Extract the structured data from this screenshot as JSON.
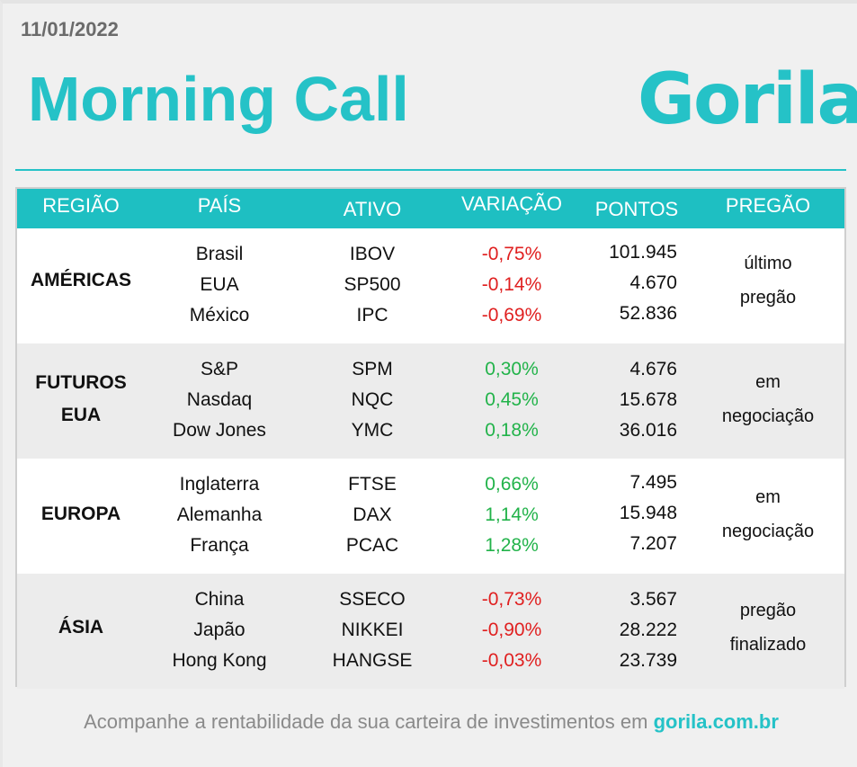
{
  "date": "11/01/2022",
  "title": "Morning Call",
  "logo_text": "Gorila",
  "colors": {
    "accent": "#25c2c7",
    "header_bg": "#1ebfc2",
    "negative": "#e02020",
    "positive": "#22b34a"
  },
  "headers": {
    "regiao": "REGIÃO",
    "pais": "PAÍS",
    "ativo": "ATIVO",
    "variacao": "VARIAÇÃO",
    "pontos": "PONTOS",
    "pregao": "PREGÃO"
  },
  "rows": [
    {
      "region_line1": "AMÉRICAS",
      "region_line2": "",
      "countries": [
        "Brasil",
        "EUA",
        "México"
      ],
      "assets": [
        "IBOV",
        "SP500",
        "IPC"
      ],
      "variations": [
        "-0,75%",
        "-0,14%",
        "-0,69%"
      ],
      "points": [
        "101.945",
        "4.670",
        "52.836"
      ],
      "status_line1": "último",
      "status_line2": "pregão"
    },
    {
      "region_line1": "FUTUROS",
      "region_line2": "EUA",
      "countries": [
        "S&P",
        "Nasdaq",
        "Dow Jones"
      ],
      "assets": [
        "SPM",
        "NQC",
        "YMC"
      ],
      "variations": [
        "0,30%",
        "0,45%",
        "0,18%"
      ],
      "points": [
        "4.676",
        "15.678",
        "36.016"
      ],
      "status_line1": "em",
      "status_line2": "negociação"
    },
    {
      "region_line1": "EUROPA",
      "region_line2": "",
      "countries": [
        "Inglaterra",
        "Alemanha",
        "França"
      ],
      "assets": [
        "FTSE",
        "DAX",
        "PCAC"
      ],
      "variations": [
        "0,66%",
        "1,14%",
        "1,28%"
      ],
      "points": [
        "7.495",
        "15.948",
        "7.207"
      ],
      "status_line1": "em",
      "status_line2": "negociação"
    },
    {
      "region_line1": "ÁSIA",
      "region_line2": "",
      "countries": [
        "China",
        "Japão",
        "Hong Kong"
      ],
      "assets": [
        "SSECO",
        "NIKKEI",
        "HANGSE"
      ],
      "variations": [
        "-0,73%",
        "-0,90%",
        "-0,03%"
      ],
      "points": [
        "3.567",
        "28.222",
        "23.739"
      ],
      "status_line1": "pregão",
      "status_line2": "finalizado"
    }
  ],
  "footer": {
    "text": "Acompanhe a rentabilidade da sua carteira de investimentos em",
    "link": "gorila.com.br"
  }
}
